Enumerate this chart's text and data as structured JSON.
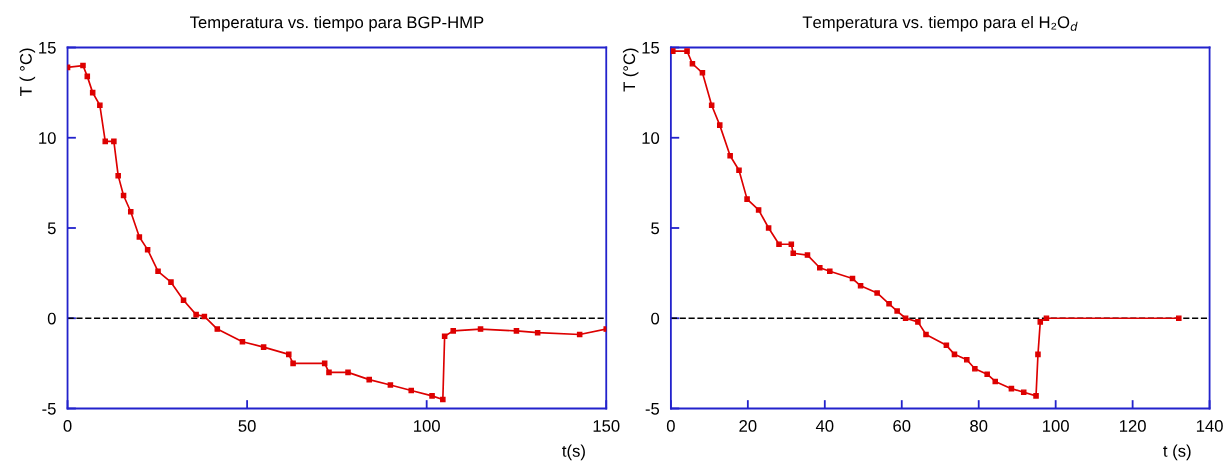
{
  "chart_data": [
    {
      "type": "line",
      "title": "Temperatura vs. tiempo para BGP-HMP",
      "xlabel": "t(s)",
      "ylabel": "T ( °C)",
      "xlim": [
        0,
        150
      ],
      "ylim": [
        -5,
        15
      ],
      "xticks": [
        0,
        50,
        100,
        150
      ],
      "yticks": [
        -5,
        0,
        5,
        10,
        15
      ],
      "grid": false,
      "marker": "square",
      "line_style": "solid",
      "ref_lines": [
        {
          "axis": "y",
          "value": 0,
          "color": "#000000",
          "line_style": "dashed"
        }
      ],
      "series": [
        {
          "color": "#dd0000",
          "x": [
            0,
            4.3,
            5.5,
            7,
            9,
            10.5,
            12.9,
            14.1,
            15.6,
            17.6,
            20,
            22.3,
            25.2,
            28.8,
            32.3,
            35.8,
            38.1,
            41.7,
            48.7,
            54.6,
            61.6,
            62.8,
            71.6,
            72.8,
            78.1,
            84,
            89.9,
            95.7,
            101.5,
            104.5,
            105,
            107.4,
            115,
            125,
            130.9,
            142.6,
            150
          ],
          "values": [
            13.9,
            14.0,
            13.4,
            12.5,
            11.8,
            9.8,
            9.8,
            7.9,
            6.8,
            5.9,
            4.5,
            3.8,
            2.6,
            2.0,
            1.0,
            0.2,
            0.1,
            -0.6,
            -1.3,
            -1.6,
            -2.0,
            -2.5,
            -2.5,
            -3.0,
            -3.0,
            -3.4,
            -3.7,
            -4.0,
            -4.3,
            -4.5,
            -1.0,
            -0.7,
            -0.6,
            -0.7,
            -0.8,
            -0.9,
            -0.6
          ]
        }
      ]
    },
    {
      "type": "line",
      "title": "Temperatura vs. tiempo para el H₂O$_{d}$",
      "xlabel": "t (s)",
      "ylabel": "T (°C)",
      "xlim": [
        0,
        140
      ],
      "ylim": [
        -5,
        15
      ],
      "xticks": [
        0,
        20,
        40,
        60,
        80,
        100,
        120,
        140
      ],
      "yticks": [
        -5,
        0,
        5,
        10,
        15
      ],
      "grid": false,
      "marker": "square",
      "line_style": "solid",
      "ref_lines": [
        {
          "axis": "y",
          "value": 0,
          "color": "#000000",
          "line_style": "dashed"
        }
      ],
      "series": [
        {
          "color": "#dd0000",
          "x": [
            0.5,
            4.2,
            5.6,
            8.2,
            10.6,
            12.7,
            15.4,
            17.7,
            19.8,
            22.8,
            25.4,
            28.1,
            31.3,
            31.8,
            35.5,
            38.7,
            41.3,
            47.2,
            49.3,
            53.6,
            56.7,
            58.8,
            61,
            64.2,
            66.3,
            71.6,
            73.7,
            76.9,
            79,
            82.2,
            84.3,
            88.5,
            91.7,
            94.9,
            95.4,
            96,
            97.6,
            132
          ],
          "values": [
            14.8,
            14.8,
            14.1,
            13.6,
            11.8,
            10.7,
            9.0,
            8.2,
            6.6,
            6.0,
            5.0,
            4.1,
            4.1,
            3.6,
            3.5,
            2.8,
            2.6,
            2.2,
            1.8,
            1.4,
            0.8,
            0.4,
            0.0,
            -0.2,
            -0.9,
            -1.5,
            -2.0,
            -2.3,
            -2.8,
            -3.1,
            -3.5,
            -3.9,
            -4.1,
            -4.3,
            -2.0,
            -0.2,
            0.0,
            0.0
          ]
        }
      ]
    }
  ]
}
